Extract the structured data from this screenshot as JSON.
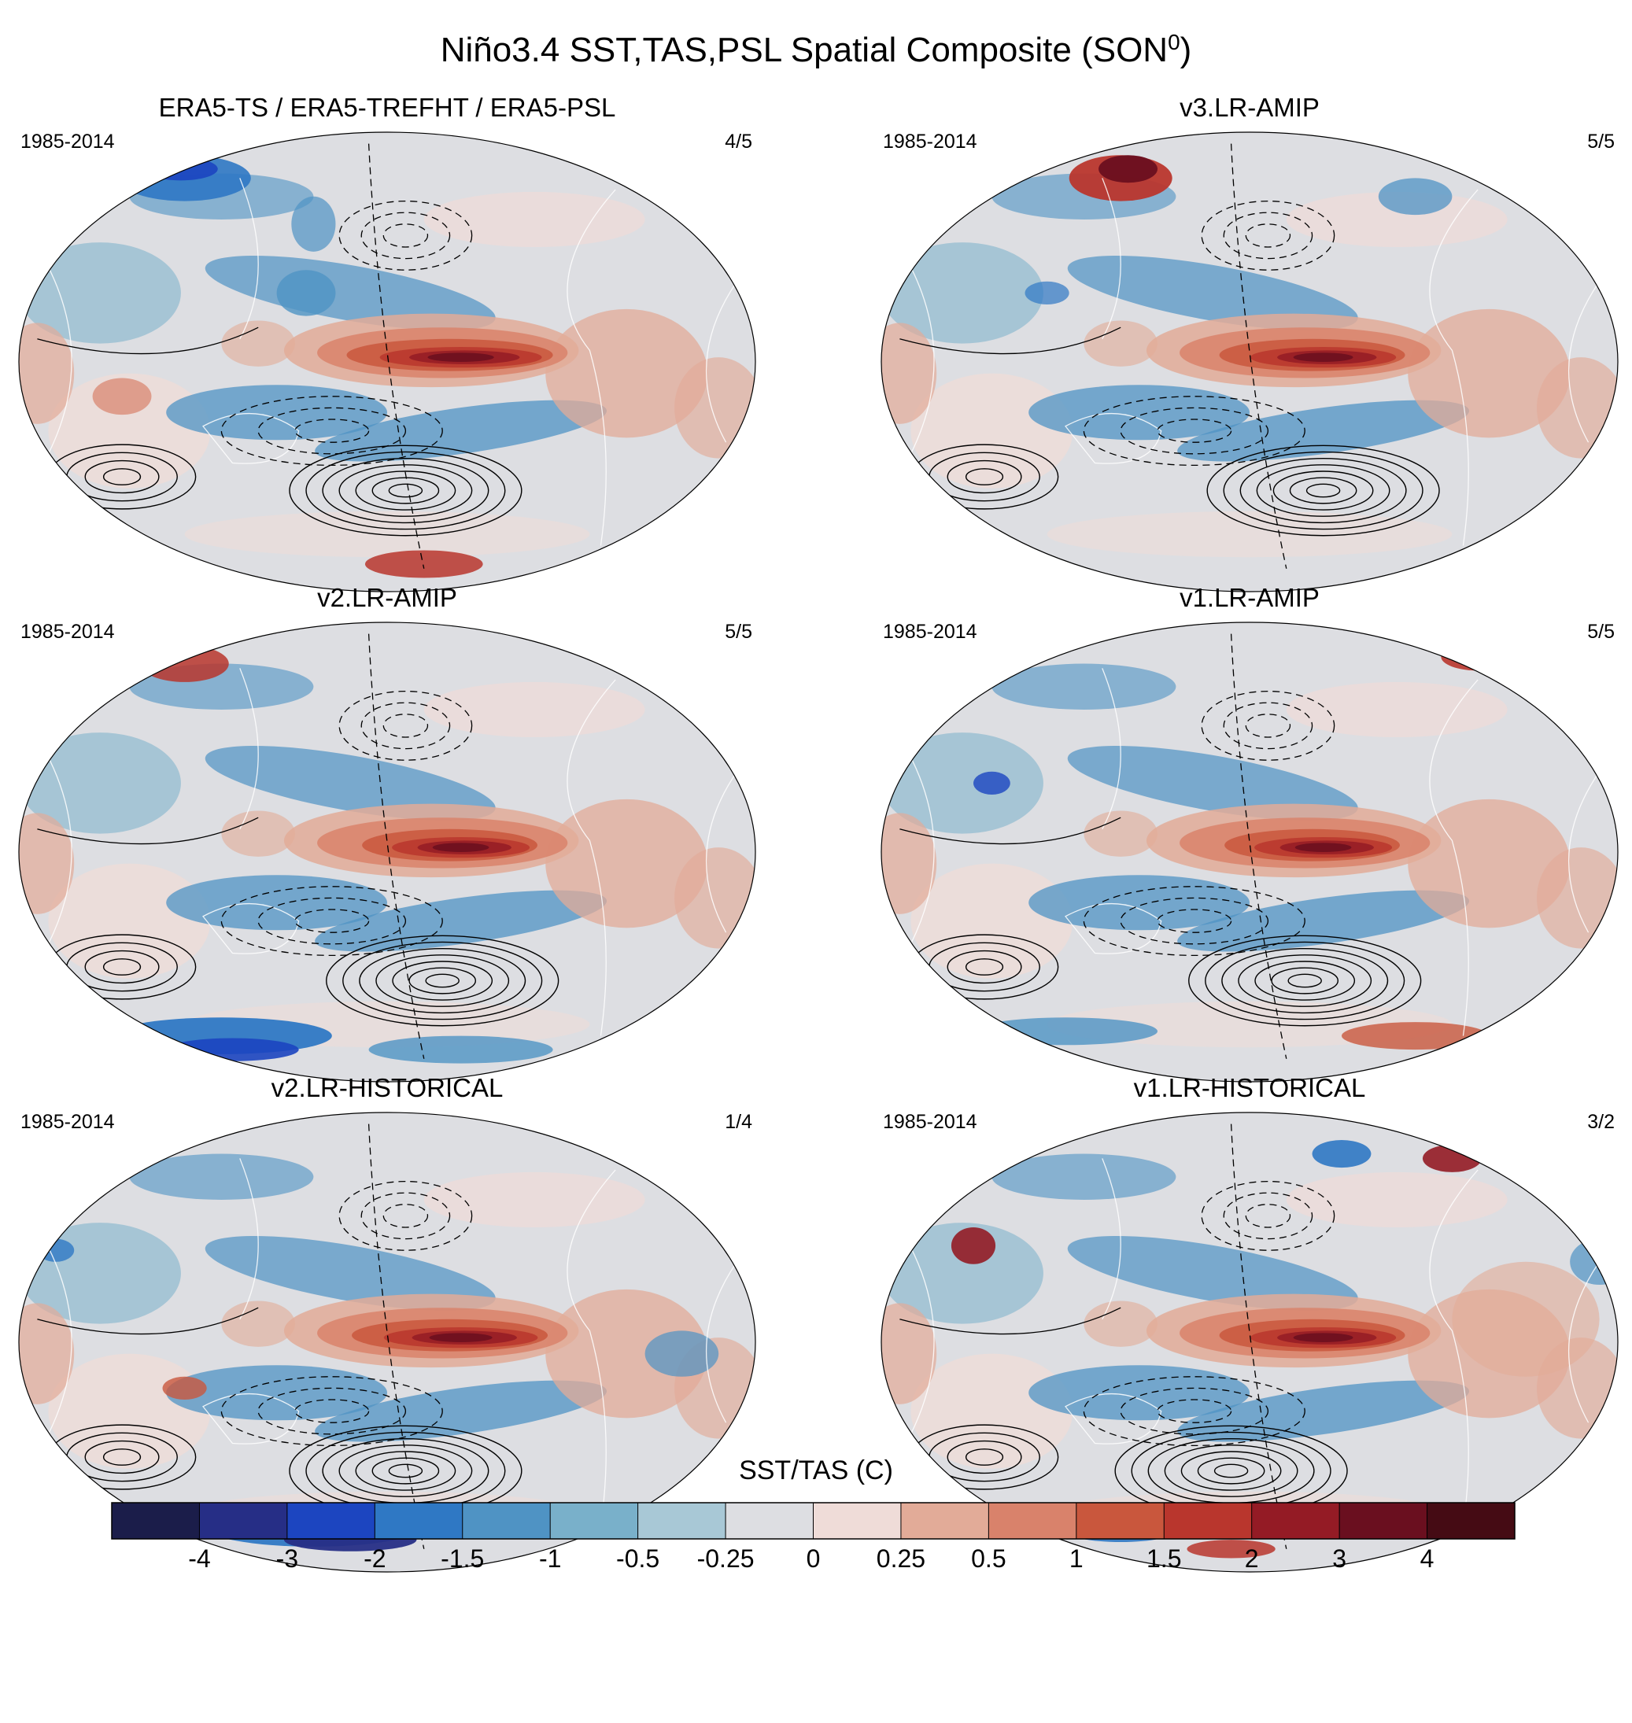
{
  "chart_data": {
    "type": "heatmap",
    "title": "Niño3.4 SST,TAS,PSL Spatial Composite (SON",
    "title_superscript": "0",
    "title_suffix": ")",
    "projection": "global ellipse (Robinson-like), Pacific-centered",
    "colorbar": {
      "label": "SST/TAS (C)",
      "ticks": [
        "-4",
        "-3",
        "-2",
        "-1.5",
        "-1",
        "-0.5",
        "-0.25",
        "0",
        "0.25",
        "0.5",
        "1",
        "1.5",
        "2",
        "3",
        "4"
      ],
      "colors": [
        "#1b1d4a",
        "#262e86",
        "#1c45c0",
        "#2f78c4",
        "#4f93c4",
        "#79b0ca",
        "#a8c8d6",
        "#dddee2",
        "#efdcd8",
        "#e2ab98",
        "#d9826b",
        "#c9573d",
        "#b9362d",
        "#941b25",
        "#6a0f1f",
        "#450b14"
      ]
    },
    "panels": [
      {
        "title": "ERA5-TS / ERA5-TREFHT / ERA5-PSL",
        "period": "1985-2014",
        "count": "4/5"
      },
      {
        "title": "v3.LR-AMIP",
        "period": "1985-2014",
        "count": "5/5"
      },
      {
        "title": "v2.LR-AMIP",
        "period": "1985-2014",
        "count": "5/5"
      },
      {
        "title": "v1.LR-AMIP",
        "period": "1985-2014",
        "count": "5/5"
      },
      {
        "title": "v2.LR-HISTORICAL",
        "period": "1985-2014",
        "count": "1/4"
      },
      {
        "title": "v1.LR-HISTORICAL",
        "period": "1985-2014",
        "count": "3/2"
      }
    ]
  }
}
